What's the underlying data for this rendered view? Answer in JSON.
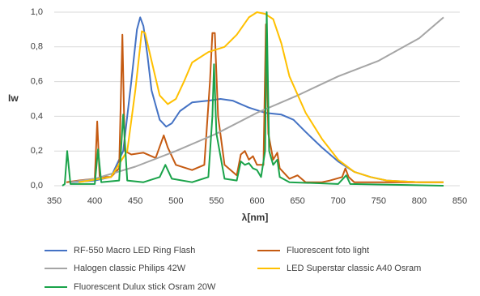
{
  "chart_data": {
    "type": "line",
    "x_label": "λ[nm]",
    "y_label": "Iw",
    "xlim": [
      350,
      850
    ],
    "xticks": [
      350,
      400,
      450,
      500,
      550,
      600,
      650,
      700,
      750,
      800,
      850
    ],
    "ylim": [
      0,
      1
    ],
    "yticks": [
      {
        "value": 0,
        "label": "0,0"
      },
      {
        "value": 0.2,
        "label": "0,2"
      },
      {
        "value": 0.4,
        "label": "0,4"
      },
      {
        "value": 0.6,
        "label": "0,6"
      },
      {
        "value": 0.8,
        "label": "0,8"
      },
      {
        "value": 1,
        "label": "1,0"
      }
    ],
    "grid": true,
    "legend": "bottom",
    "series": [
      {
        "name": "RF-550 Macro LED Ring Flash",
        "color": "#4472c4",
        "x": [
          370,
          400,
          420,
          435,
          445,
          452,
          456,
          460,
          465,
          470,
          480,
          488,
          495,
          505,
          520,
          540,
          555,
          570,
          590,
          610,
          630,
          645,
          660,
          680,
          700,
          720,
          740,
          760,
          800,
          830
        ],
        "values": [
          0.02,
          0.03,
          0.05,
          0.2,
          0.6,
          0.9,
          0.97,
          0.92,
          0.75,
          0.55,
          0.38,
          0.34,
          0.36,
          0.43,
          0.48,
          0.49,
          0.5,
          0.49,
          0.45,
          0.42,
          0.41,
          0.38,
          0.31,
          0.22,
          0.14,
          0.08,
          0.05,
          0.03,
          0.02,
          0.02
        ]
      },
      {
        "name": "Fluorescent foto light",
        "color": "#c55a11",
        "x": [
          365,
          380,
          400,
          403,
          406,
          420,
          430,
          434,
          437,
          445,
          460,
          475,
          485,
          490,
          500,
          520,
          535,
          542,
          545,
          548,
          552,
          560,
          575,
          580,
          585,
          590,
          595,
          600,
          608,
          611,
          614,
          620,
          625,
          628,
          640,
          650,
          660,
          680,
          690,
          705,
          709,
          713,
          720,
          760,
          830
        ],
        "values": [
          0.02,
          0.03,
          0.04,
          0.37,
          0.05,
          0.05,
          0.1,
          0.87,
          0.2,
          0.18,
          0.19,
          0.16,
          0.29,
          0.22,
          0.12,
          0.09,
          0.12,
          0.6,
          0.88,
          0.88,
          0.4,
          0.12,
          0.06,
          0.18,
          0.2,
          0.15,
          0.17,
          0.12,
          0.12,
          0.93,
          0.3,
          0.15,
          0.19,
          0.1,
          0.04,
          0.06,
          0.02,
          0.02,
          0.03,
          0.05,
          0.1,
          0.05,
          0.02,
          0.02,
          0.02
        ]
      },
      {
        "name": "Halogen classic Philips 42W",
        "color": "#a5a5a5",
        "x": [
          370,
          400,
          450,
          500,
          550,
          600,
          650,
          700,
          750,
          800,
          830
        ],
        "values": [
          0.02,
          0.04,
          0.11,
          0.2,
          0.3,
          0.42,
          0.52,
          0.63,
          0.72,
          0.85,
          0.97
        ]
      },
      {
        "name": "LED Superstar classic A40 Osram",
        "color": "#ffc000",
        "x": [
          380,
          420,
          440,
          450,
          458,
          462,
          470,
          480,
          490,
          500,
          510,
          520,
          540,
          560,
          575,
          590,
          600,
          610,
          620,
          630,
          640,
          660,
          680,
          700,
          720,
          740,
          760,
          800,
          830
        ],
        "values": [
          0.02,
          0.05,
          0.2,
          0.55,
          0.89,
          0.88,
          0.72,
          0.52,
          0.47,
          0.5,
          0.6,
          0.71,
          0.77,
          0.8,
          0.87,
          0.97,
          1.0,
          0.99,
          0.96,
          0.82,
          0.63,
          0.42,
          0.27,
          0.15,
          0.08,
          0.05,
          0.03,
          0.02,
          0.02
        ]
      },
      {
        "name": "Fluorescent Dulux stick Osram 20W",
        "color": "#1aa34a",
        "x": [
          360,
          363,
          366,
          370,
          400,
          404,
          408,
          430,
          435,
          440,
          460,
          480,
          487,
          495,
          520,
          540,
          545,
          547,
          550,
          560,
          575,
          580,
          585,
          590,
          595,
          600,
          605,
          610,
          612,
          615,
          620,
          625,
          628,
          640,
          700,
          710,
          715,
          830
        ],
        "values": [
          0.0,
          0.01,
          0.2,
          0.01,
          0.01,
          0.21,
          0.02,
          0.03,
          0.41,
          0.03,
          0.02,
          0.05,
          0.12,
          0.04,
          0.02,
          0.05,
          0.4,
          0.7,
          0.3,
          0.04,
          0.03,
          0.14,
          0.12,
          0.13,
          0.1,
          0.09,
          0.05,
          0.2,
          1.0,
          0.2,
          0.12,
          0.15,
          0.05,
          0.02,
          0.01,
          0.06,
          0.01,
          0.0
        ]
      }
    ]
  }
}
